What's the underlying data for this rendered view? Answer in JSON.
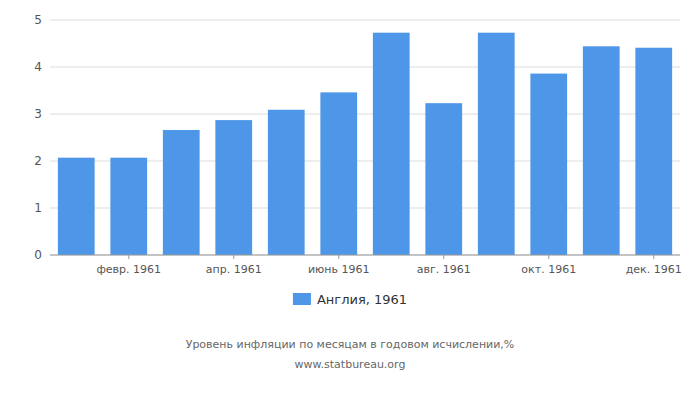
{
  "chart_data": {
    "type": "bar",
    "categories": [
      null,
      "февр. 1961",
      null,
      "апр. 1961",
      null,
      "июнь 1961",
      null,
      "авг. 1961",
      null,
      "окт. 1961",
      null,
      "дек. 1961"
    ],
    "series": [
      {
        "name": "Англия, 1961",
        "color": "#4d96e8",
        "values": [
          2.07,
          2.07,
          2.66,
          2.87,
          3.09,
          3.46,
          4.73,
          3.23,
          4.73,
          3.86,
          4.44,
          4.41
        ]
      }
    ],
    "ylim": [
      0,
      5
    ],
    "yticks": [
      0,
      1,
      2,
      3,
      4,
      5
    ],
    "grid": true,
    "legend": "bottom",
    "annotations": [
      "Уровень инфляции по месяцам в годовом исчислении,%",
      "www.statbureau.org"
    ]
  }
}
